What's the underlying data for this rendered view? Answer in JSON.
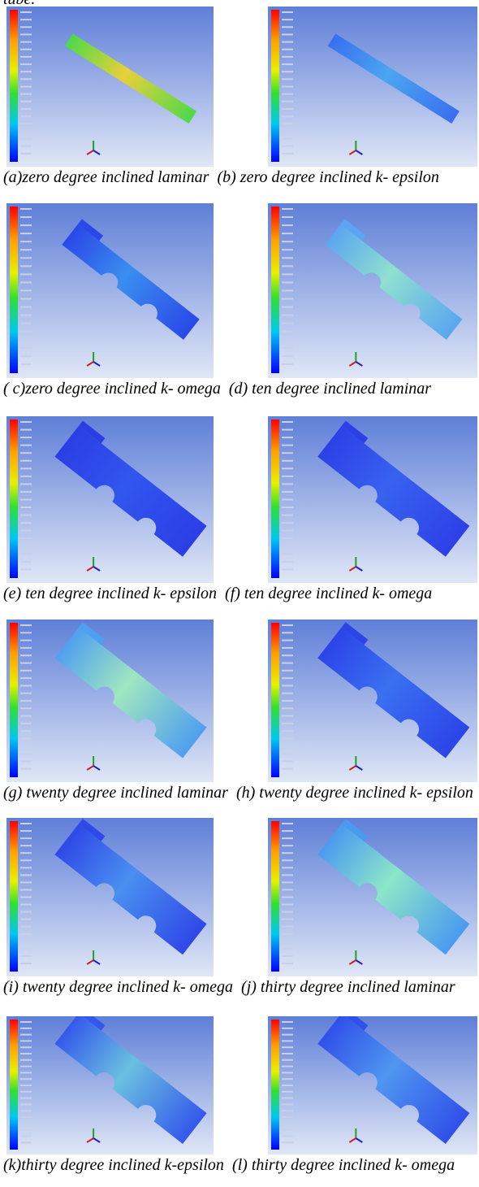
{
  "top_fragment": "tube.",
  "rows": [
    {
      "left": "(a)zero degree inclined laminar",
      "right": "(b) zero degree inclined k- epsilon"
    },
    {
      "left": "( c)zero degree inclined k- omega",
      "right": "(d) ten degree inclined laminar"
    },
    {
      "left": "(e) ten degree inclined k- epsilon",
      "right": "(f) ten degree inclined k- omega"
    },
    {
      "left": "(g) twenty degree inclined laminar",
      "right": "(h) twenty degree inclined k- epsilon"
    },
    {
      "left": "(i) twenty degree inclined k- omega",
      "right": "(j) thirty degree inclined laminar"
    },
    {
      "left": "(k)thirty degree inclined k-epsilon",
      "right": "(l) thirty degree inclined k- omega"
    }
  ]
}
